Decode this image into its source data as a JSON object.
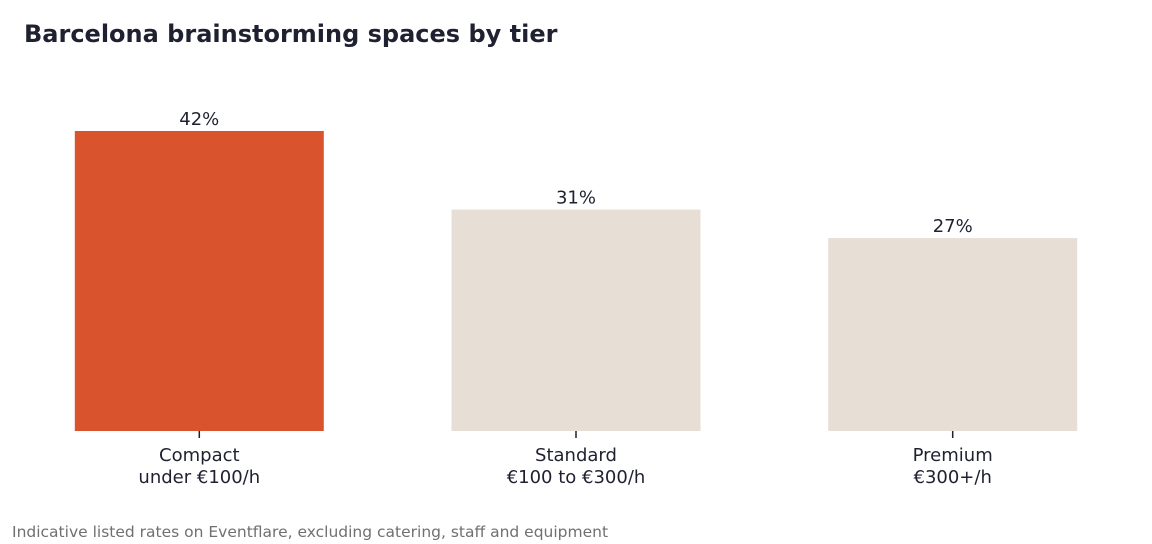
{
  "chart_data": {
    "type": "bar",
    "title": "Barcelona brainstorming spaces by tier",
    "categories": [
      [
        "Compact",
        "under €100/h"
      ],
      [
        "Standard",
        "€100 to €300/h"
      ],
      [
        "Premium",
        "€300+/h"
      ]
    ],
    "values": [
      42,
      31,
      27
    ],
    "value_labels": [
      "42%",
      "31%",
      "27%"
    ],
    "unit": "%",
    "ylim": [
      0,
      42
    ],
    "grid": false,
    "highlight_index": 0,
    "colors": {
      "highlight": "#d9542d",
      "default": "#e7ded5",
      "text": "#1f2130",
      "axis": "#1f2130"
    }
  },
  "footnote": "Indicative listed rates on Eventflare, excluding catering, staff and equipment"
}
